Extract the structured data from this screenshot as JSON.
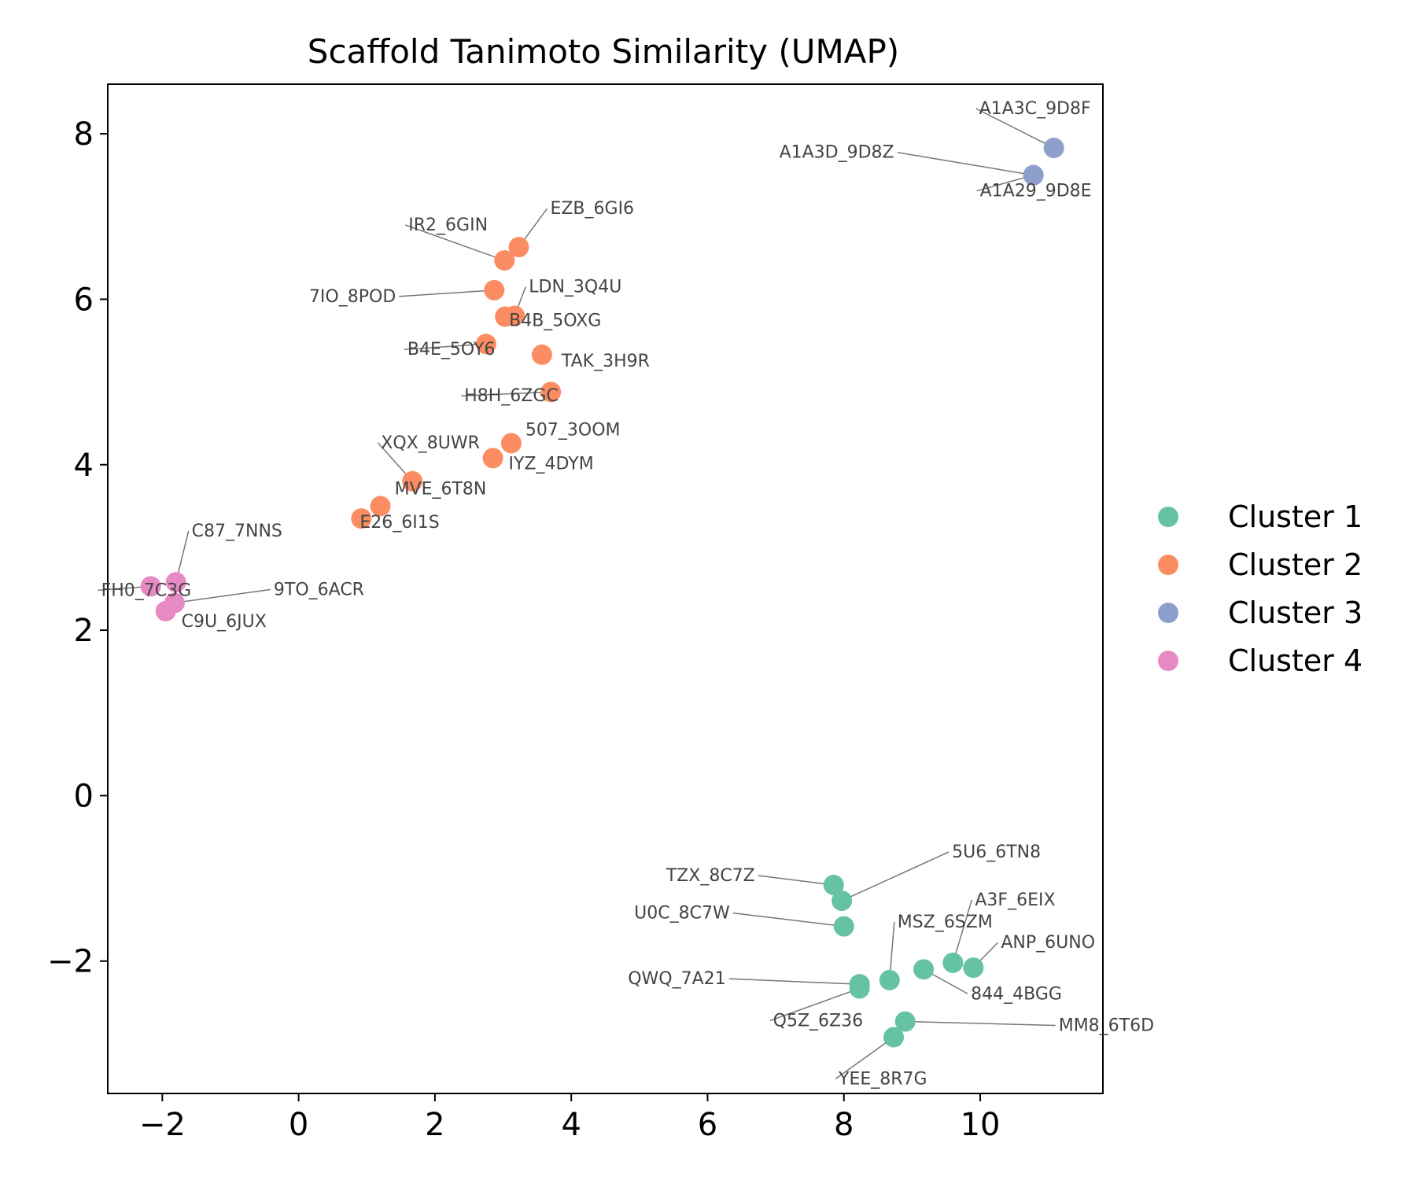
{
  "chart_data": {
    "type": "scatter",
    "title": "Scaffold Tanimoto Similarity (UMAP)",
    "xlabel": "",
    "ylabel": "",
    "xlim": [
      -2.8,
      11.8
    ],
    "ylim": [
      -3.6,
      8.6
    ],
    "xticks": [
      -2,
      0,
      2,
      4,
      6,
      8,
      10
    ],
    "yticks": [
      -2,
      0,
      2,
      4,
      6,
      8
    ],
    "grid": false,
    "legend_position": "right",
    "series": [
      {
        "name": "Cluster 1",
        "color": "#66c2a5",
        "points": [
          {
            "label": "5U6_6TN8",
            "x": 7.97,
            "y": -1.27
          },
          {
            "label": "TZX_8C7Z",
            "x": 7.85,
            "y": -1.08
          },
          {
            "label": "U0C_8C7W",
            "x": 8.0,
            "y": -1.58
          },
          {
            "label": "MSZ_6SZM",
            "x": 8.67,
            "y": -2.23
          },
          {
            "label": "A3F_6EIX",
            "x": 9.6,
            "y": -2.02
          },
          {
            "label": "ANP_6UNO",
            "x": 9.9,
            "y": -2.08
          },
          {
            "label": "844_4BGG",
            "x": 9.17,
            "y": -2.1
          },
          {
            "label": "QWQ_7A21",
            "x": 8.23,
            "y": -2.28
          },
          {
            "label": "Q5Z_6Z36",
            "x": 8.23,
            "y": -2.33
          },
          {
            "label": "MM8_6T6D",
            "x": 8.9,
            "y": -2.73
          },
          {
            "label": "YEE_8R7G",
            "x": 8.73,
            "y": -2.92
          }
        ]
      },
      {
        "name": "Cluster 2",
        "color": "#fc8d62",
        "points": [
          {
            "label": "EZB_6GI6",
            "x": 3.23,
            "y": 6.63
          },
          {
            "label": "IR2_6GIN",
            "x": 3.02,
            "y": 6.47
          },
          {
            "label": "7IO_8POD",
            "x": 2.87,
            "y": 6.11
          },
          {
            "label": "LDN_3Q4U",
            "x": 3.17,
            "y": 5.8
          },
          {
            "label": "B4B_5OXG",
            "x": 3.03,
            "y": 5.79
          },
          {
            "label": "B4E_5OY6",
            "x": 2.75,
            "y": 5.46
          },
          {
            "label": "TAK_3H9R",
            "x": 3.57,
            "y": 5.33
          },
          {
            "label": "H8H_6ZGC",
            "x": 3.7,
            "y": 4.88
          },
          {
            "label": "507_3OOM",
            "x": 3.12,
            "y": 4.26
          },
          {
            "label": "IYZ_4DYM",
            "x": 2.85,
            "y": 4.08
          },
          {
            "label": "XQX_8UWR",
            "x": 1.67,
            "y": 3.8
          },
          {
            "label": "MVE_6T8N",
            "x": 1.2,
            "y": 3.5
          },
          {
            "label": "E26_6I1S",
            "x": 0.92,
            "y": 3.35
          }
        ]
      },
      {
        "name": "Cluster 3",
        "color": "#8da0cb",
        "points": [
          {
            "label": "A1A3C_9D8F",
            "x": 11.08,
            "y": 7.83
          },
          {
            "label": "A1A3D_9D8Z",
            "x": 10.78,
            "y": 7.5
          },
          {
            "label": "A1A29_9D8E",
            "x": 10.78,
            "y": 7.5
          }
        ]
      },
      {
        "name": "Cluster 4",
        "color": "#e78ac3",
        "points": [
          {
            "label": "C87_7NNS",
            "x": -1.8,
            "y": 2.58
          },
          {
            "label": "FH0_7C3G",
            "x": -2.17,
            "y": 2.53
          },
          {
            "label": "9TO_6ACR",
            "x": -1.82,
            "y": 2.33
          },
          {
            "label": "C9U_6JUX",
            "x": -1.95,
            "y": 2.23
          }
        ]
      }
    ]
  }
}
